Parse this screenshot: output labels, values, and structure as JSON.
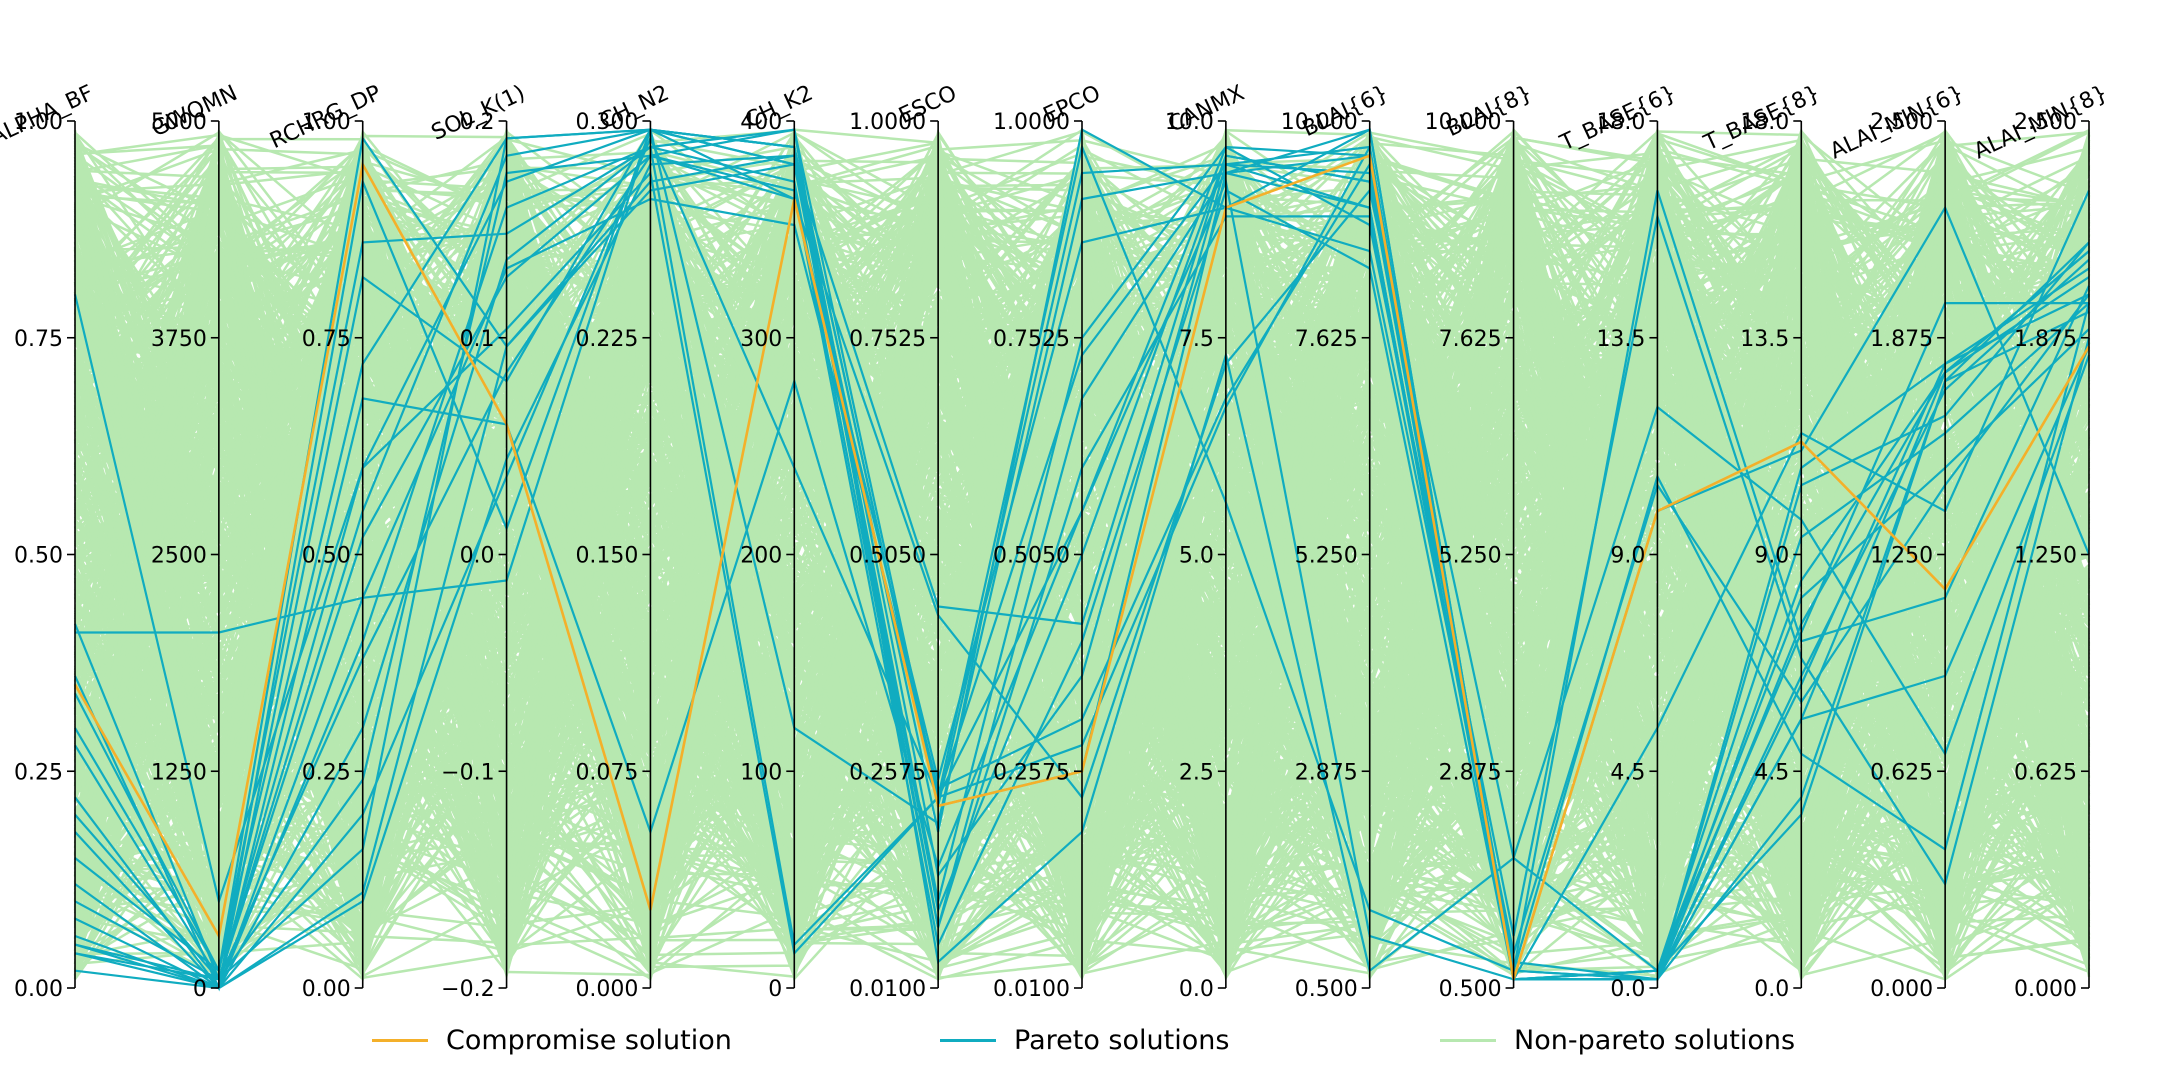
{
  "chart_data": {
    "type": "parallel-coordinates",
    "axes": [
      {
        "name": "ALPHA_BF",
        "ticks": [
          "0.00",
          "0.25",
          "0.50",
          "0.75",
          "1.00"
        ]
      },
      {
        "name": "GWQMN",
        "ticks": [
          "0",
          "1250",
          "2500",
          "3750",
          "5000"
        ]
      },
      {
        "name": "RCHRG_DP",
        "ticks": [
          "0.00",
          "0.25",
          "0.50",
          "0.75",
          "1.00"
        ]
      },
      {
        "name": "SOL_K(1)",
        "ticks": [
          "−0.2",
          "−0.1",
          "0.0",
          "0.1",
          "0.2"
        ]
      },
      {
        "name": "CH_N2",
        "ticks": [
          "0.000",
          "0.075",
          "0.150",
          "0.225",
          "0.300"
        ]
      },
      {
        "name": "CH_K2",
        "ticks": [
          "0",
          "100",
          "200",
          "300",
          "400"
        ]
      },
      {
        "name": "ESCO",
        "ticks": [
          "0.0100",
          "0.2575",
          "0.5050",
          "0.7525",
          "1.0000"
        ]
      },
      {
        "name": "EPCO",
        "ticks": [
          "0.0100",
          "0.2575",
          "0.5050",
          "0.7525",
          "1.0000"
        ]
      },
      {
        "name": "CANMX",
        "ticks": [
          "0.0",
          "2.5",
          "5.0",
          "7.5",
          "10.0"
        ]
      },
      {
        "name": "BLAI{6}",
        "ticks": [
          "0.500",
          "2.875",
          "5.250",
          "7.625",
          "10.000"
        ]
      },
      {
        "name": "BLAI{8}",
        "ticks": [
          "0.500",
          "2.875",
          "5.250",
          "7.625",
          "10.000"
        ]
      },
      {
        "name": "T_BASE{6}",
        "ticks": [
          "0.0",
          "4.5",
          "9.0",
          "13.5",
          "18.0"
        ]
      },
      {
        "name": "T_BASE{8}",
        "ticks": [
          "0.0",
          "4.5",
          "9.0",
          "13.5",
          "18.0"
        ]
      },
      {
        "name": "ALAI_MIN{6}",
        "ticks": [
          "0.000",
          "0.625",
          "1.250",
          "1.875",
          "2.500"
        ]
      },
      {
        "name": "ALAI_MIN{8}",
        "ticks": [
          "0.000",
          "0.625",
          "1.250",
          "1.875",
          "2.500"
        ]
      }
    ],
    "normalized_range": [
      0,
      1
    ],
    "series": [
      {
        "name": "Non-pareto solutions",
        "color": "#b7e8b0"
      },
      {
        "name": "Pareto solutions",
        "color": "#10acc0",
        "lines": [
          [
            0.42,
            0.01,
            0.6,
            0.93,
            0.99,
            0.97,
            0.21,
            0.25,
            0.94,
            0.99,
            0.01,
            0.01,
            0.6,
            0.72,
            0.8
          ],
          [
            0.06,
            0.0,
            0.3,
            0.84,
            0.97,
            0.05,
            0.22,
            0.73,
            0.95,
            0.9,
            0.01,
            0.01,
            0.35,
            0.72,
            0.83
          ],
          [
            0.34,
            0.02,
            0.98,
            0.74,
            0.92,
            0.95,
            0.18,
            0.99,
            0.9,
            0.99,
            0.01,
            0.02,
            0.2,
            0.7,
            0.78
          ],
          [
            0.05,
            0.0,
            0.1,
            0.61,
            0.95,
            0.96,
            0.07,
            0.68,
            0.94,
            0.96,
            0.01,
            0.01,
            0.42,
            0.71,
            0.85
          ],
          [
            0.1,
            0.01,
            0.55,
            0.96,
            0.99,
            0.91,
            0.43,
            0.22,
            0.72,
            0.92,
            0.15,
            0.02,
            0.45,
            0.6,
            0.76
          ],
          [
            0.04,
            0.0,
            0.2,
            0.59,
            0.98,
            0.6,
            0.22,
            0.55,
            0.97,
            0.88,
            0.06,
            0.89,
            0.38,
            0.12,
            0.75
          ],
          [
            0.28,
            0.01,
            0.38,
            0.71,
            0.96,
            0.92,
            0.05,
            0.4,
            0.92,
            0.83,
            0.01,
            0.02,
            0.52,
            0.64,
            0.79
          ],
          [
            0.22,
            0.0,
            0.45,
            0.83,
            0.91,
            0.88,
            0.23,
            0.31,
            0.68,
            0.95,
            0.02,
            0.92,
            0.4,
            0.45,
            0.81
          ],
          [
            0.04,
            0.01,
            0.16,
            0.98,
            0.99,
            0.97,
            0.21,
            0.94,
            0.95,
            0.97,
            0.01,
            0.01,
            0.22,
            0.7,
            0.86
          ],
          [
            0.18,
            0.0,
            0.68,
            0.65,
            0.18,
            0.7,
            0.14,
            0.55,
            0.93,
            0.06,
            0.01,
            0.55,
            0.62,
            0.9,
            0.5
          ],
          [
            0.41,
            0.41,
            0.45,
            0.47,
            0.99,
            0.95,
            0.44,
            0.42,
            0.96,
            0.93,
            0.03,
            0.01,
            0.31,
            0.36,
            0.74
          ],
          [
            0.15,
            0.02,
            0.86,
            0.87,
            0.97,
            0.99,
            0.03,
            0.18,
            0.73,
            0.02,
            0.15,
            0.67,
            0.54,
            0.27,
            0.73
          ],
          [
            0.8,
            0.1,
            0.6,
            0.76,
            0.94,
            0.04,
            0.22,
            0.97,
            0.56,
            0.09,
            0.02,
            0.59,
            0.27,
            0.16,
            0.79
          ],
          [
            0.12,
            0.0,
            0.93,
            0.53,
            0.99,
            0.3,
            0.19,
            0.91,
            0.94,
            0.9,
            0.01,
            0.3,
            0.64,
            0.55,
            0.92
          ],
          [
            0.05,
            0.01,
            0.24,
            0.94,
            0.96,
            0.99,
            0.22,
            0.28,
            0.67,
            0.97,
            0.02,
            0.01,
            0.47,
            0.71,
            0.85
          ],
          [
            0.08,
            0.0,
            0.4,
            0.9,
            0.97,
            0.93,
            0.07,
            0.6,
            0.89,
            0.89,
            0.01,
            0.01,
            0.36,
            0.69,
            0.84
          ],
          [
            0.3,
            0.02,
            0.72,
            0.98,
            0.99,
            0.97,
            0.13,
            0.36,
            0.95,
            0.94,
            0.02,
            0.01,
            0.31,
            0.71,
            0.82
          ],
          [
            0.02,
            0.0,
            0.11,
            0.74,
            0.93,
            0.96,
            0.1,
            0.75,
            0.97,
            0.96,
            0.01,
            0.02,
            0.41,
            0.79,
            0.79
          ],
          [
            0.2,
            0.01,
            0.52,
            0.82,
            0.96,
            0.91,
            0.24,
            0.86,
            0.9,
            0.85,
            0.04,
            0.58,
            0.33,
            0.58,
            0.8
          ],
          [
            0.36,
            0.0,
            0.82,
            0.7,
            0.99,
            0.95,
            0.09,
            0.5,
            0.96,
            0.93,
            0.01,
            0.01,
            0.58,
            0.66,
            0.86
          ]
        ]
      },
      {
        "name": "Compromise solution",
        "color": "#f4b02a",
        "line": [
          0.35,
          0.06,
          0.95,
          0.65,
          0.09,
          0.91,
          0.21,
          0.25,
          0.9,
          0.96,
          0.01,
          0.55,
          0.63,
          0.46,
          0.74
        ]
      }
    ],
    "legend_position": "bottom-center"
  }
}
